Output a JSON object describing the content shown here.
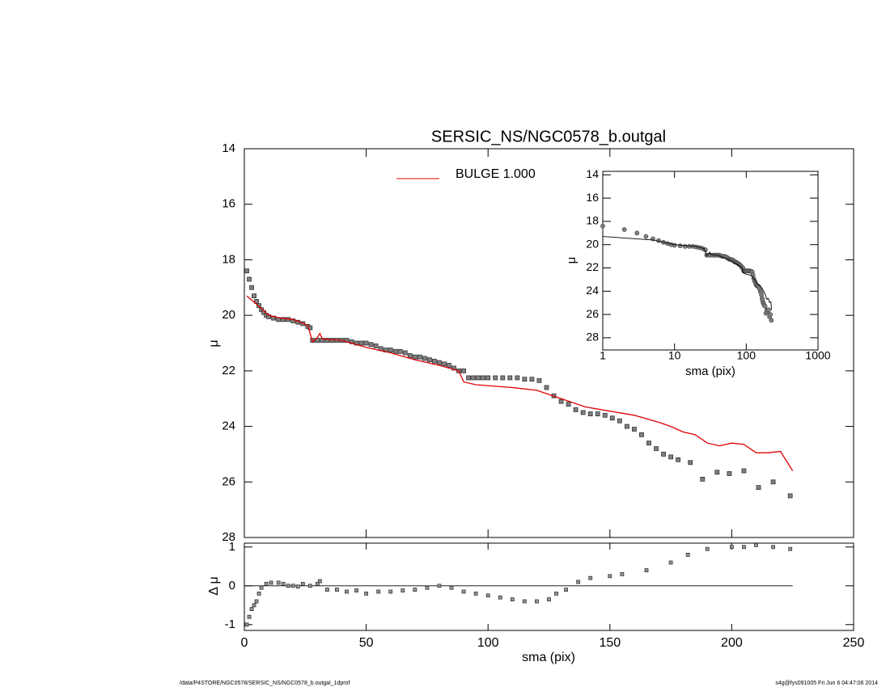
{
  "chart_data": [
    {
      "type": "scatter",
      "title": "SERSIC_NS/NGC0578_b.outgal",
      "ylabel": "μ",
      "xlim": [
        0,
        250
      ],
      "ylim": [
        28,
        14
      ],
      "yticks": [
        14,
        16,
        18,
        20,
        22,
        24,
        26,
        28
      ],
      "series": [
        {
          "color": "#808080",
          "x": [
            1,
            2,
            3,
            4,
            5,
            6,
            7,
            8,
            9,
            10,
            12,
            14,
            16,
            18,
            20,
            22,
            24,
            26,
            27,
            28,
            30,
            32,
            34,
            36,
            38,
            40,
            42,
            44,
            46,
            48,
            50,
            52,
            54,
            56,
            58,
            60,
            62,
            64,
            66,
            68,
            70,
            72,
            74,
            76,
            78,
            80,
            82,
            84,
            86,
            88,
            90,
            92,
            94,
            96,
            98,
            100,
            103,
            106,
            109,
            112,
            115,
            118,
            121,
            124,
            127,
            130,
            133,
            136,
            139,
            142,
            145,
            148,
            151,
            154,
            157,
            160,
            163,
            166,
            169,
            172,
            175,
            178,
            183,
            188,
            194,
            199,
            205,
            211,
            217,
            224
          ],
          "values": [
            18.4,
            18.7,
            19.0,
            19.3,
            19.5,
            19.65,
            19.8,
            19.9,
            20.0,
            20.05,
            20.1,
            20.15,
            20.15,
            20.15,
            20.2,
            20.25,
            20.3,
            20.4,
            20.45,
            20.9,
            20.9,
            20.9,
            20.9,
            20.9,
            20.9,
            20.9,
            20.9,
            20.95,
            21.0,
            21.0,
            21.0,
            21.05,
            21.1,
            21.2,
            21.25,
            21.25,
            21.3,
            21.3,
            21.35,
            21.45,
            21.5,
            21.5,
            21.55,
            21.6,
            21.65,
            21.7,
            21.75,
            21.8,
            21.9,
            22.0,
            22.0,
            22.25,
            22.25,
            22.25,
            22.25,
            22.25,
            22.25,
            22.25,
            22.25,
            22.25,
            22.3,
            22.3,
            22.35,
            22.6,
            22.9,
            23.1,
            23.2,
            23.4,
            23.5,
            23.55,
            23.55,
            23.6,
            23.7,
            23.8,
            24.0,
            24.1,
            24.3,
            24.6,
            24.8,
            25.0,
            25.1,
            25.2,
            25.3,
            25.9,
            25.65,
            25.7,
            25.6,
            26.2,
            26.0,
            26.5
          ]
        },
        {
          "name": "BULGE  1.000",
          "color": "#e00000",
          "x": [
            1,
            5,
            10,
            15,
            20,
            26,
            28,
            30,
            31,
            32,
            40,
            50,
            60,
            70,
            80,
            88,
            90,
            95,
            110,
            120,
            130,
            140,
            150,
            160,
            170,
            175,
            180,
            185,
            190,
            195,
            200,
            205,
            210,
            215,
            220,
            225
          ],
          "values": [
            19.3,
            19.6,
            20.0,
            20.1,
            20.15,
            20.35,
            20.95,
            20.8,
            20.65,
            20.85,
            20.9,
            21.15,
            21.35,
            21.6,
            21.8,
            22.0,
            22.4,
            22.5,
            22.6,
            22.7,
            23.0,
            23.3,
            23.45,
            23.6,
            23.85,
            24.0,
            24.2,
            24.3,
            24.6,
            24.7,
            24.6,
            24.65,
            24.95,
            24.95,
            24.9,
            25.6
          ]
        }
      ]
    },
    {
      "type": "residual",
      "xlabel": "sma (pix)",
      "ylabel": "Δ μ",
      "xlim": [
        0,
        250
      ],
      "xticks": [
        0,
        50,
        100,
        150,
        200,
        250
      ],
      "ylim": [
        -1.15,
        1.1
      ],
      "yticks": [
        -1,
        0,
        1
      ],
      "reference_line": {
        "y": 0,
        "x": [
          0,
          225
        ],
        "color": "#000000"
      },
      "color": "#000000",
      "x": [
        1,
        2,
        3,
        4,
        5,
        6,
        7,
        9,
        11,
        14,
        16,
        18,
        20,
        22,
        24,
        27,
        30,
        31,
        34,
        38,
        42,
        46,
        50,
        55,
        60,
        65,
        70,
        75,
        80,
        85,
        90,
        95,
        100,
        105,
        110,
        115,
        120,
        125,
        128,
        132,
        137,
        142,
        150,
        155,
        165,
        175,
        182,
        190,
        200,
        205,
        210,
        217,
        224
      ],
      "values": [
        -1.0,
        -0.8,
        -0.6,
        -0.5,
        -0.4,
        -0.2,
        -0.05,
        0.05,
        0.08,
        0.08,
        0.05,
        0,
        0,
        -0.02,
        0.05,
        0,
        0.05,
        0.12,
        -0.1,
        -0.1,
        -0.15,
        -0.12,
        -0.2,
        -0.15,
        -0.15,
        -0.12,
        -0.1,
        -0.05,
        0,
        -0.05,
        -0.15,
        -0.2,
        -0.25,
        -0.3,
        -0.35,
        -0.4,
        -0.4,
        -0.35,
        -0.2,
        -0.1,
        0.1,
        0.2,
        0.25,
        0.3,
        0.4,
        0.6,
        0.8,
        0.95,
        1.0,
        1.0,
        1.05,
        1.0,
        0.95
      ]
    },
    {
      "type": "inset",
      "xlabel": "sma (pix)",
      "ylabel": "μ",
      "xscale": "log",
      "xlim": [
        1,
        1000
      ],
      "xticks": [
        1,
        10,
        100,
        1000
      ],
      "ylim": [
        29.05,
        13.7
      ],
      "yticks": [
        14,
        16,
        18,
        20,
        22,
        24,
        26,
        28
      ],
      "point_color": "#808080",
      "line_color": "#000000"
    }
  ],
  "footer": {
    "left": "/data/P4STORE/NGC0578/SERSIC_NS/NGC0578_b.outgal_1dprof",
    "right": "s4g@fys091005  Fri Jun  6 04:47:06 2014"
  }
}
